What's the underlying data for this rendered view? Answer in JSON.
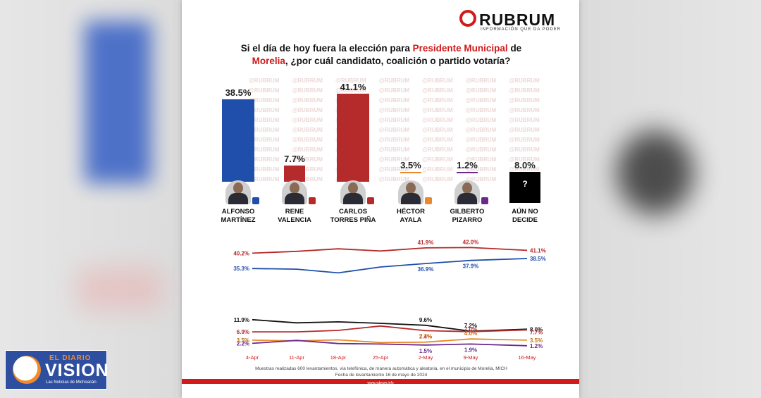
{
  "logo": {
    "name": "RUBRUM",
    "tagline": "INFORMACIÓN QUE DA PODER"
  },
  "question": {
    "part1": "Si el día de hoy fuera la elección para ",
    "highlight1": "Presidente Municipal",
    "part2": " de",
    "highlight2": "Morelia",
    "part3": ", ¿por cuál candidato, coalición o partido votaría?"
  },
  "watermark": "@RUBRUM",
  "colors": {
    "blue": "#1f4faa",
    "red": "#b52a2a",
    "accent": "#d11a1a"
  },
  "chart_data": [
    {
      "type": "bar",
      "categories": [
        "ALFONSO MARTÍNEZ",
        "RENE VALENCIA",
        "CARLOS TORRES PIÑA",
        "HÉCTOR AYALA",
        "GILBERTO PIZARRO",
        "AÚN NO DECIDE"
      ],
      "values": [
        38.5,
        7.7,
        41.1,
        3.5,
        1.2,
        8.0
      ],
      "labels": [
        "38.5%",
        "7.7%",
        "41.1%",
        "3.5%",
        "1.2%",
        "8.0%"
      ],
      "name_lines": [
        [
          "ALFONSO",
          "MARTÍNEZ"
        ],
        [
          "RENE",
          "VALENCIA"
        ],
        [
          "CARLOS",
          "TORRES PIÑA"
        ],
        [
          "HÉCTOR",
          "AYALA"
        ],
        [
          "GILBERTO",
          "PIZARRO"
        ],
        [
          "AÚN NO",
          "DECIDE"
        ]
      ],
      "colors": [
        "#1f4faa",
        "#b52a2a",
        "#b52a2a",
        "#e8892b",
        "#6a2a8c",
        "#000000"
      ],
      "ylim": [
        0,
        45
      ]
    },
    {
      "type": "line",
      "x": [
        "4-Apr",
        "11-Apr",
        "18-Apr",
        "25-Apr",
        "2-May",
        "9-May",
        "16-May"
      ],
      "ylim": [
        34,
        43
      ],
      "series": [
        {
          "color": "#b52a2a",
          "values": [
            40.2,
            40.8,
            41.6,
            40.9,
            41.9,
            42.0,
            41.1
          ],
          "point_labels": [
            {
              "i": 0,
              "text": "40.2%",
              "pos": "left"
            },
            {
              "i": 4,
              "text": "41.9%",
              "pos": "above"
            },
            {
              "i": 5,
              "text": "42.0%",
              "pos": "above"
            },
            {
              "i": 6,
              "text": "41.1%",
              "pos": "right"
            }
          ]
        },
        {
          "color": "#1f4faa",
          "values": [
            35.3,
            35.1,
            33.9,
            35.8,
            36.9,
            37.9,
            38.5
          ],
          "point_labels": [
            {
              "i": 0,
              "text": "35.3%",
              "pos": "left"
            },
            {
              "i": 4,
              "text": "36.9%",
              "pos": "below"
            },
            {
              "i": 5,
              "text": "37.9%",
              "pos": "below"
            },
            {
              "i": 6,
              "text": "38.5%",
              "pos": "right"
            }
          ]
        }
      ]
    },
    {
      "type": "line",
      "x": [
        "4-Apr",
        "11-Apr",
        "18-Apr",
        "25-Apr",
        "2-May",
        "9-May",
        "16-May"
      ],
      "ylim": [
        0,
        13
      ],
      "series": [
        {
          "color": "#111111",
          "values": [
            11.9,
            10.6,
            11.0,
            10.4,
            9.6,
            7.2,
            8.0
          ],
          "point_labels": [
            {
              "i": 0,
              "text": "11.9%",
              "pos": "left"
            },
            {
              "i": 4,
              "text": "9.6%",
              "pos": "above"
            },
            {
              "i": 5,
              "text": "7.2%",
              "pos": "above"
            },
            {
              "i": 6,
              "text": "8.0%",
              "pos": "right"
            }
          ]
        },
        {
          "color": "#b52a2a",
          "values": [
            6.9,
            6.9,
            7.5,
            9.3,
            7.4,
            7.0,
            7.7
          ],
          "point_labels": [
            {
              "i": 0,
              "text": "6.9%",
              "pos": "left"
            },
            {
              "i": 4,
              "text": "7.4%",
              "pos": "below"
            },
            {
              "i": 5,
              "text": "7.0%",
              "pos": "above2"
            },
            {
              "i": 6,
              "text": "7.7%",
              "pos": "right2"
            }
          ]
        },
        {
          "color": "#e8892b",
          "values": [
            3.5,
            3.2,
            3.6,
            2.5,
            2.7,
            4.0,
            3.5
          ],
          "point_labels": [
            {
              "i": 0,
              "text": "3.5%",
              "pos": "left"
            },
            {
              "i": 4,
              "text": "2.7%",
              "pos": "above"
            },
            {
              "i": 5,
              "text": "4.0%",
              "pos": "above"
            },
            {
              "i": 6,
              "text": "3.5%",
              "pos": "right"
            }
          ]
        },
        {
          "color": "#6a2a8c",
          "values": [
            2.2,
            3.4,
            2.1,
            1.9,
            1.5,
            1.9,
            1.2
          ],
          "point_labels": [
            {
              "i": 0,
              "text": "2.2%",
              "pos": "left"
            },
            {
              "i": 4,
              "text": "1.5%",
              "pos": "below"
            },
            {
              "i": 5,
              "text": "1.9%",
              "pos": "below"
            },
            {
              "i": 6,
              "text": "1.2%",
              "pos": "right"
            }
          ]
        }
      ]
    }
  ],
  "footnote": {
    "line1": "Muestras realizadas 600 levantamientos, vía telefónica, de manera automática y aleatoria, en el municipio de Morelia, MICH",
    "line2": "Fecha de levantamiento 16 de mayo de 2024"
  },
  "url": "www.rubrum.info",
  "brand": {
    "top": "EL DIARIO",
    "main": "VISION",
    "sub": "Las Noticias de Michoacán"
  }
}
